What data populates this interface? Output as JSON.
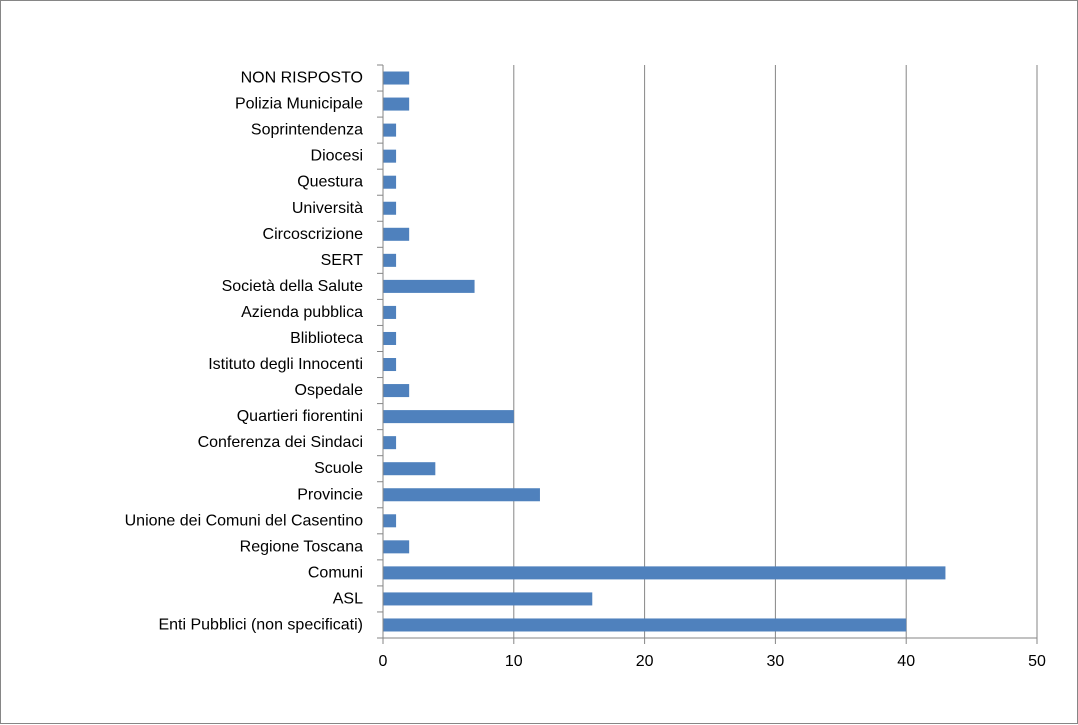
{
  "chart_data": {
    "type": "bar",
    "orientation": "horizontal",
    "categories": [
      "NON RISPOSTO",
      "Polizia Municipale",
      "Soprintendenza",
      "Diocesi",
      "Questura",
      "Università",
      "Circoscrizione",
      "SERT",
      "Società della Salute",
      "Azienda pubblica",
      "Bliblioteca",
      "Istituto degli Innocenti",
      "Ospedale",
      "Quartieri fiorentini",
      "Conferenza dei Sindaci",
      "Scuole",
      "Provincie",
      "Unione dei Comuni del Casentino",
      "Regione Toscana",
      "Comuni",
      "ASL",
      "Enti Pubblici (non specificati)"
    ],
    "values": [
      2,
      2,
      1,
      1,
      1,
      1,
      2,
      1,
      7,
      1,
      1,
      1,
      2,
      10,
      1,
      4,
      12,
      1,
      2,
      43,
      16,
      40
    ],
    "xlim": [
      0,
      50
    ],
    "xticks": [
      0,
      10,
      20,
      30,
      40,
      50
    ],
    "grid": true,
    "legend": "none",
    "title": "",
    "xlabel": "",
    "ylabel": "",
    "colors": {
      "bar": "#4f81bd",
      "grid": "#868686",
      "axis": "#868686"
    }
  }
}
